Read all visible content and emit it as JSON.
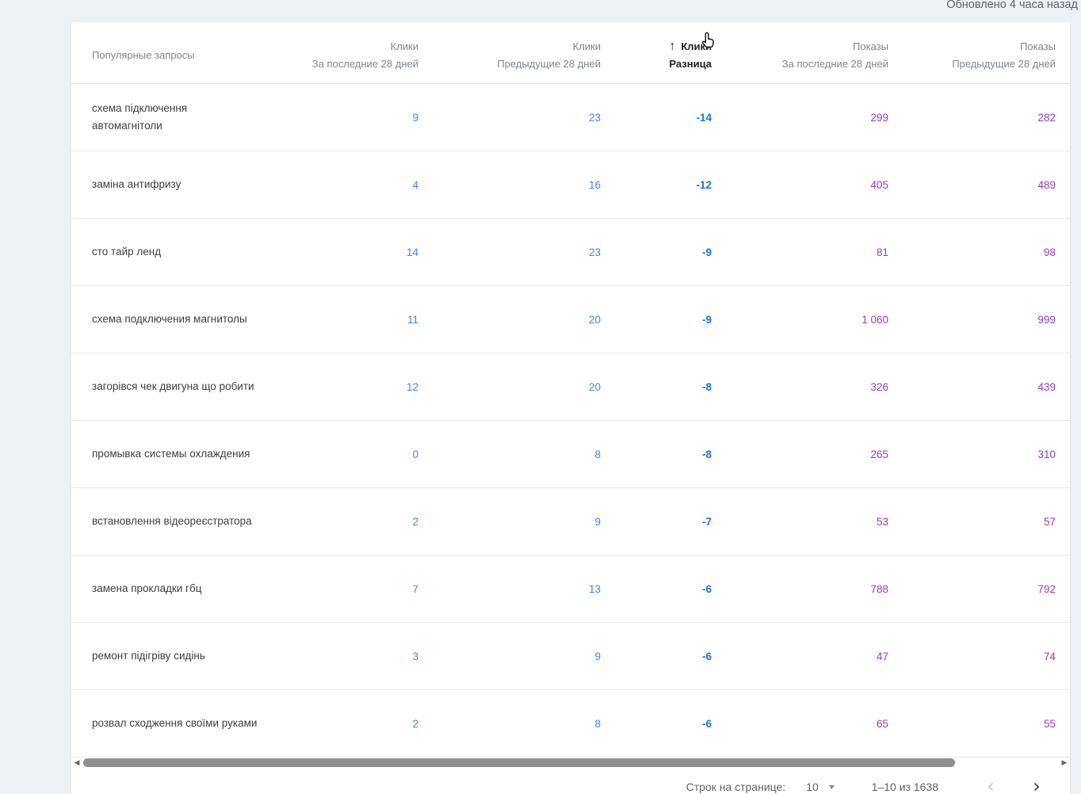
{
  "updated": "Обновлено 4 часа назад",
  "table": {
    "query_header": "Популярные запросы",
    "columns": [
      {
        "line1": "Клики",
        "line2": "За последние 28 дней",
        "sorted": false
      },
      {
        "line1": "Клики",
        "line2": "Предыдущие 28 дней",
        "sorted": false
      },
      {
        "line1": "Клики",
        "line2": "Разница",
        "sorted": true
      },
      {
        "line1": "Показы",
        "line2": "За последние 28 дней",
        "sorted": false
      },
      {
        "line1": "Показы",
        "line2": "Предыдущие 28 дней",
        "sorted": false
      }
    ],
    "rows": [
      {
        "query": "схема підключення автомагнітоли",
        "clicks_last": "9",
        "clicks_prev": "23",
        "diff": "-14",
        "impr_last": "299",
        "impr_prev": "282"
      },
      {
        "query": "заміна антифризу",
        "clicks_last": "4",
        "clicks_prev": "16",
        "diff": "-12",
        "impr_last": "405",
        "impr_prev": "489"
      },
      {
        "query": "сто тайр ленд",
        "clicks_last": "14",
        "clicks_prev": "23",
        "diff": "-9",
        "impr_last": "81",
        "impr_prev": "98"
      },
      {
        "query": "схема подключения магнитолы",
        "clicks_last": "11",
        "clicks_prev": "20",
        "diff": "-9",
        "impr_last": "1 060",
        "impr_prev": "999"
      },
      {
        "query": "загорівся чек двигуна що робити",
        "clicks_last": "12",
        "clicks_prev": "20",
        "diff": "-8",
        "impr_last": "326",
        "impr_prev": "439"
      },
      {
        "query": "промывка системы охлаждения",
        "clicks_last": "0",
        "clicks_prev": "8",
        "diff": "-8",
        "impr_last": "265",
        "impr_prev": "310"
      },
      {
        "query": "встановлення відеореєстратора",
        "clicks_last": "2",
        "clicks_prev": "9",
        "diff": "-7",
        "impr_last": "53",
        "impr_prev": "57"
      },
      {
        "query": "замена прокладки гбц",
        "clicks_last": "7",
        "clicks_prev": "13",
        "diff": "-6",
        "impr_last": "788",
        "impr_prev": "792"
      },
      {
        "query": "ремонт підігріву сидінь",
        "clicks_last": "3",
        "clicks_prev": "9",
        "diff": "-6",
        "impr_last": "47",
        "impr_prev": "74"
      },
      {
        "query": "розвал сходження своїми руками",
        "clicks_last": "2",
        "clicks_prev": "8",
        "diff": "-6",
        "impr_last": "65",
        "impr_prev": "55"
      }
    ]
  },
  "icons": {
    "sort_asc": "↑",
    "caret_down": "▼",
    "chevron_left": "‹",
    "chevron_right": "›",
    "scroll_left": "◀",
    "scroll_right": "▶"
  },
  "pagination": {
    "rows_per_page_label": "Строк на странице:",
    "rows_per_page_value": "10",
    "range_label": "1–10 из 1638"
  },
  "colors": {
    "clicks_blue": "#4285f4",
    "diff_blue": "#1a73e8",
    "impressions_purple": "#963cc3",
    "header_gray": "#80868b",
    "text_dark": "#202124",
    "background": "#edf0f5"
  }
}
